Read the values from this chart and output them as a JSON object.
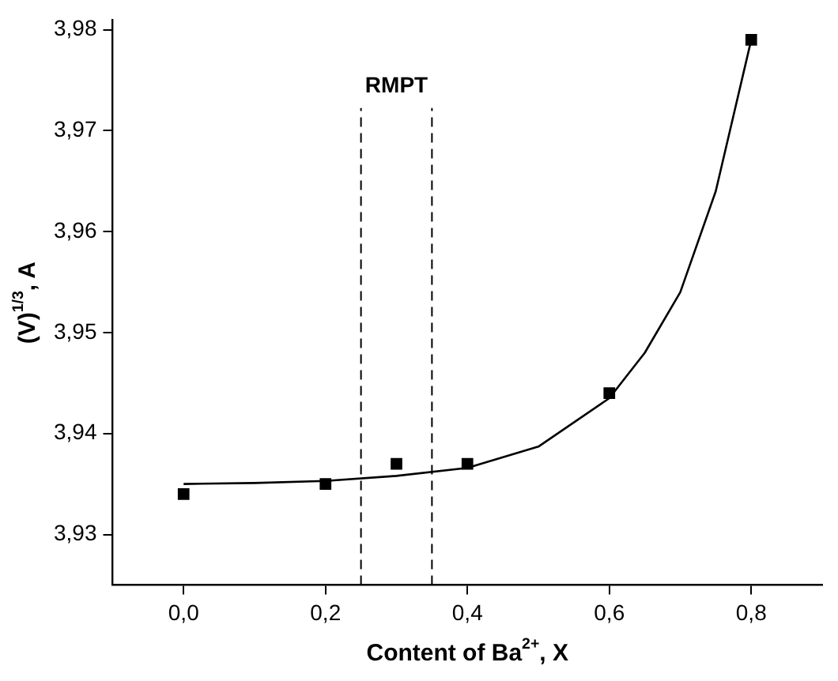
{
  "chart_data": {
    "type": "scatter",
    "xlabel": "Content of Ba$^{2+}$, X",
    "ylabel": "(V)$^{1/3}$, A",
    "series": [
      {
        "color": "#000000",
        "marker": "square",
        "x": [
          0,
          0.2,
          0.3,
          0.4,
          0.6,
          0.8
        ],
        "values": [
          3.934,
          3.935,
          3.937,
          3.937,
          3.944,
          3.979
        ]
      },
      {
        "type": "line",
        "color": "#000000",
        "marker": "none",
        "line_style": "solid",
        "x": [
          0,
          0.1,
          0.2,
          0.3,
          0.4,
          0.5,
          0.6,
          0.65,
          0.7,
          0.75,
          0.8
        ],
        "values": [
          3.935,
          3.9351,
          3.9353,
          3.9358,
          3.9366,
          3.9387,
          3.9435,
          3.948,
          3.954,
          3.964,
          3.979
        ]
      }
    ],
    "xlim": [
      -0.1,
      0.9
    ],
    "xticks": [
      {
        "value": 0,
        "label": "0,0"
      },
      {
        "value": 0.2,
        "label": "0,2"
      },
      {
        "value": 0.4,
        "label": "0,4"
      },
      {
        "value": 0.6,
        "label": "0,6"
      },
      {
        "value": 0.8,
        "label": "0,8"
      }
    ],
    "ylim": [
      3.925,
      3.981
    ],
    "yticks": [
      {
        "value": 3.93,
        "label": "3,93"
      },
      {
        "value": 3.94,
        "label": "3,94"
      },
      {
        "value": 3.95,
        "label": "3,95"
      },
      {
        "value": 3.96,
        "label": "3,96"
      },
      {
        "value": 3.97,
        "label": "3,97"
      },
      {
        "value": 3.98,
        "label": "3,98"
      }
    ],
    "ref_lines": [
      {
        "axis": "x",
        "value": 0.25,
        "line_style": "dashed",
        "color": "#000000"
      },
      {
        "axis": "x",
        "value": 0.35,
        "line_style": "dashed",
        "color": "#000000"
      }
    ],
    "annotations": [
      "RMPT"
    ],
    "grid": false,
    "legend": false
  }
}
